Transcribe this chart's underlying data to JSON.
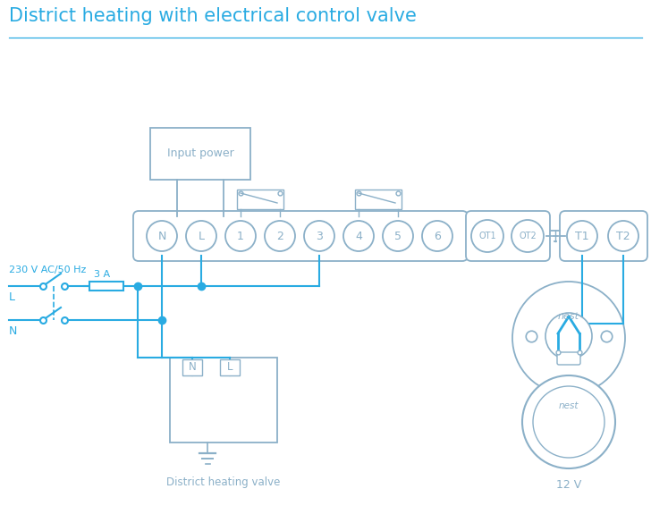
{
  "title": "District heating with electrical control valve",
  "title_color": "#29abe2",
  "title_fontsize": 15,
  "bg_color": "#ffffff",
  "wire_color": "#29abe2",
  "box_color": "#8bb0c8",
  "terminal_labels": [
    "N",
    "L",
    "1",
    "2",
    "3",
    "4",
    "5",
    "6"
  ],
  "ot_labels": [
    "OT1",
    "OT2"
  ],
  "t_labels": [
    "T1",
    "T2"
  ],
  "input_power_label": "Input power",
  "district_valve_label": "District heating valve",
  "voltage_label": "230 V AC/50 Hz",
  "fuse_label": "3 A",
  "L_label": "L",
  "N_label": "N",
  "twelve_v_label": "12 V",
  "nest_label": "nest",
  "fig_w": 7.28,
  "fig_h": 5.94,
  "dpi": 100
}
